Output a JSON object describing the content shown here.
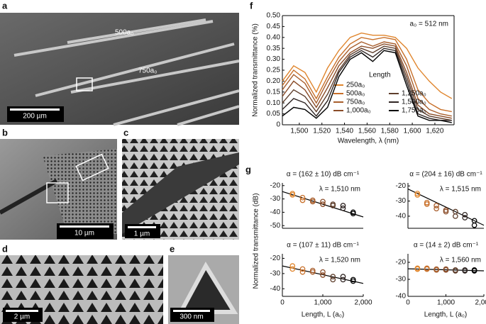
{
  "panels": {
    "a": {
      "label": "a",
      "scale": "200 µm",
      "annotations": [
        "500a₀",
        "750a₀"
      ]
    },
    "b": {
      "label": "b",
      "scale": "10 µm"
    },
    "c": {
      "label": "c",
      "scale": "1 µm"
    },
    "d": {
      "label": "d",
      "scale": "2 µm"
    },
    "e": {
      "label": "e",
      "scale": "300 nm"
    }
  },
  "figure": {
    "g_label": "g",
    "g_ylabel": "Normalized transmittance (dB)",
    "g_xlabel": "Length, L (a₀)"
  },
  "chart_data": [
    {
      "type": "line",
      "label": "f",
      "ylabel": "Normalized transmittance (%)",
      "xlabel": "Wavelength, λ (nm)",
      "annotation": "a₀ = 512 nm",
      "legend_title": "Length",
      "x": [
        1485,
        1495,
        1505,
        1515,
        1525,
        1535,
        1545,
        1555,
        1565,
        1575,
        1585,
        1595,
        1605,
        1615,
        1625,
        1635
      ],
      "xlim": [
        1485,
        1637
      ],
      "xticks": [
        {
          "value": 1500,
          "label": "1,500"
        },
        {
          "value": 1520,
          "label": "1,520"
        },
        {
          "value": 1540,
          "label": "1,540"
        },
        {
          "value": 1560,
          "label": "1,560"
        },
        {
          "value": 1580,
          "label": "1,580"
        },
        {
          "value": 1600,
          "label": "1,600"
        },
        {
          "value": 1620,
          "label": "1,620"
        }
      ],
      "ylim": [
        0,
        0.5
      ],
      "yticks": [
        0,
        0.05,
        {
          "value": 0.1,
          "label": "0.10"
        },
        0.15,
        {
          "value": 0.2,
          "label": "0.20"
        },
        0.25,
        {
          "value": 0.3,
          "label": "0.30"
        },
        0.35,
        {
          "value": 0.4,
          "label": "0.40"
        },
        0.45,
        {
          "value": 0.5,
          "label": "0.50"
        }
      ],
      "series": [
        {
          "name": "250a₀",
          "color": "#e0862e",
          "values": [
            0.2,
            0.27,
            0.24,
            0.15,
            0.26,
            0.34,
            0.4,
            0.42,
            0.41,
            0.41,
            0.4,
            0.35,
            0.26,
            0.2,
            0.15,
            0.12
          ]
        },
        {
          "name": "500a₀",
          "color": "#c8702a",
          "values": [
            0.18,
            0.25,
            0.21,
            0.12,
            0.22,
            0.31,
            0.37,
            0.4,
            0.39,
            0.4,
            0.39,
            0.3,
            0.16,
            0.1,
            0.07,
            0.06
          ]
        },
        {
          "name": "750a₀",
          "color": "#a85e2c",
          "values": [
            0.16,
            0.23,
            0.19,
            0.1,
            0.2,
            0.29,
            0.35,
            0.38,
            0.36,
            0.38,
            0.37,
            0.27,
            0.12,
            0.07,
            0.05,
            0.04
          ]
        },
        {
          "name": "1,000a₀",
          "color": "#8a4c28",
          "values": [
            0.13,
            0.2,
            0.16,
            0.08,
            0.17,
            0.27,
            0.33,
            0.36,
            0.35,
            0.37,
            0.36,
            0.24,
            0.09,
            0.05,
            0.04,
            0.03
          ]
        },
        {
          "name": "1,250a₀",
          "color": "#5e3e2c",
          "values": [
            0.1,
            0.16,
            0.13,
            0.06,
            0.14,
            0.25,
            0.32,
            0.35,
            0.33,
            0.36,
            0.35,
            0.22,
            0.07,
            0.04,
            0.03,
            0.02
          ]
        },
        {
          "name": "1,500a₀",
          "color": "#302624",
          "values": [
            0.07,
            0.12,
            0.1,
            0.04,
            0.11,
            0.24,
            0.31,
            0.34,
            0.31,
            0.35,
            0.34,
            0.2,
            0.05,
            0.03,
            0.02,
            0.02
          ]
        },
        {
          "name": "1,750a₀",
          "color": "#000000",
          "values": [
            0.04,
            0.08,
            0.07,
            0.03,
            0.08,
            0.22,
            0.3,
            0.33,
            0.29,
            0.34,
            0.33,
            0.18,
            0.04,
            0.02,
            0.02,
            0.01
          ]
        }
      ]
    },
    {
      "type": "scatter",
      "annotation": "α = (162 ± 10) dB cm⁻¹",
      "wavelength": "λ = 1,510 nm",
      "xlim": [
        0,
        2000
      ],
      "ylim": [
        -52,
        -18
      ],
      "yticks": [
        -20,
        -30,
        -40,
        -50
      ],
      "x": [
        250,
        250,
        500,
        500,
        750,
        750,
        1000,
        1000,
        1250,
        1250,
        1500,
        1500,
        1750,
        1750
      ],
      "values": [
        -26,
        -27,
        -29,
        -31,
        -31,
        -32,
        -32,
        -34,
        -34,
        -35,
        -35,
        -37,
        -40,
        -41
      ],
      "colors": [
        "#e0862e",
        "#e0862e",
        "#c8702a",
        "#c8702a",
        "#a85e2c",
        "#a85e2c",
        "#8a4c28",
        "#8a4c28",
        "#5e3e2c",
        "#5e3e2c",
        "#302624",
        "#302624",
        "#000000",
        "#000000"
      ],
      "fit": {
        "x": [
          0,
          2000
        ],
        "values": [
          -24.5,
          -43.5
        ]
      }
    },
    {
      "type": "scatter",
      "annotation": "α = (204 ± 16) dB cm⁻¹",
      "wavelength": "λ = 1,515 nm",
      "xlim": [
        0,
        2000
      ],
      "ylim": [
        -48,
        -18
      ],
      "yticks": [
        -20,
        -30,
        -40
      ],
      "x": [
        250,
        250,
        500,
        500,
        750,
        750,
        1000,
        1000,
        1250,
        1250,
        1500,
        1500,
        1750,
        1750
      ],
      "values": [
        -25,
        -26,
        -31,
        -32,
        -33,
        -35,
        -36,
        -37,
        -37,
        -40,
        -39,
        -41,
        -43,
        -46
      ],
      "colors": [
        "#e0862e",
        "#e0862e",
        "#c8702a",
        "#c8702a",
        "#a85e2c",
        "#a85e2c",
        "#8a4c28",
        "#8a4c28",
        "#5e3e2c",
        "#5e3e2c",
        "#302624",
        "#302624",
        "#000000",
        "#000000"
      ],
      "fit": {
        "x": [
          0,
          2000
        ],
        "values": [
          -22,
          -46
        ]
      }
    },
    {
      "type": "scatter",
      "annotation": "α = (107 ± 11) dB cm⁻¹",
      "wavelength": "λ = 1,520 nm",
      "xlim": [
        0,
        2000
      ],
      "ylim": [
        -45,
        -17
      ],
      "yticks": [
        -20,
        -30,
        -40
      ],
      "xticks": [
        0,
        {
          "value": 1000,
          "label": "1,000"
        },
        {
          "value": 2000,
          "label": "2,000"
        }
      ],
      "x": [
        250,
        250,
        500,
        500,
        750,
        750,
        1000,
        1000,
        1250,
        1250,
        1500,
        1500,
        1750,
        1750
      ],
      "values": [
        -25,
        -27,
        -27,
        -29,
        -28,
        -29,
        -29,
        -31,
        -32,
        -34,
        -32,
        -34,
        -34,
        -35
      ],
      "colors": [
        "#e0862e",
        "#e0862e",
        "#c8702a",
        "#c8702a",
        "#a85e2c",
        "#a85e2c",
        "#8a4c28",
        "#8a4c28",
        "#5e3e2c",
        "#5e3e2c",
        "#302624",
        "#302624",
        "#000000",
        "#000000"
      ],
      "fit": {
        "x": [
          0,
          2000
        ],
        "values": [
          -25,
          -36.5
        ]
      }
    },
    {
      "type": "scatter",
      "annotation": "α = (14 ± 2) dB cm⁻¹",
      "wavelength": "λ = 1,560 nm",
      "xlim": [
        0,
        2000
      ],
      "ylim": [
        -40,
        -15
      ],
      "yticks": [
        -20,
        -30,
        -40
      ],
      "xticks": [
        0,
        {
          "value": 1000,
          "label": "1,000"
        },
        {
          "value": 2000,
          "label": "2,000"
        }
      ],
      "x": [
        250,
        250,
        500,
        500,
        750,
        750,
        1000,
        1000,
        1250,
        1250,
        1500,
        1500,
        1750,
        1750
      ],
      "values": [
        -23.5,
        -24,
        -23.5,
        -24,
        -24,
        -24.5,
        -24,
        -24.5,
        -24.5,
        -25,
        -24.5,
        -25,
        -24.5,
        -25
      ],
      "colors": [
        "#e0862e",
        "#e0862e",
        "#c8702a",
        "#c8702a",
        "#a85e2c",
        "#a85e2c",
        "#8a4c28",
        "#8a4c28",
        "#5e3e2c",
        "#5e3e2c",
        "#302624",
        "#302624",
        "#000000",
        "#000000"
      ],
      "fit": {
        "x": [
          0,
          2000
        ],
        "values": [
          -23.8,
          -25
        ]
      }
    }
  ]
}
